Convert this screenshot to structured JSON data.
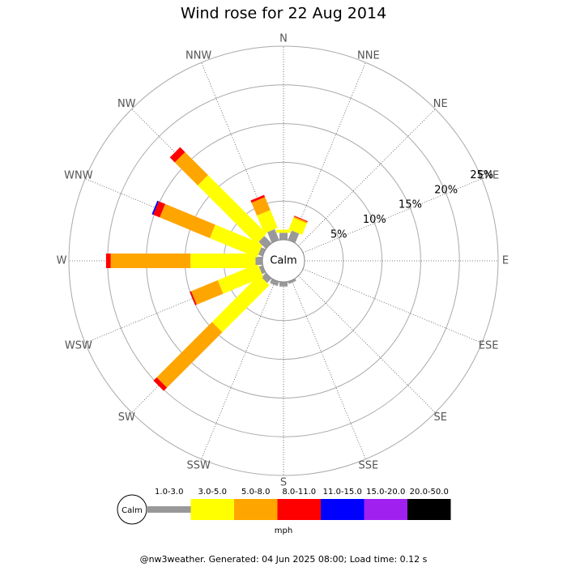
{
  "chart_data": {
    "type": "windrose",
    "title": "Wind rose for 22 Aug 2014",
    "categories": [
      "N",
      "NNE",
      "NE",
      "ENE",
      "E",
      "ESE",
      "SE",
      "SSE",
      "S",
      "SSW",
      "SW",
      "WSW",
      "W",
      "WNW",
      "NW",
      "NNW"
    ],
    "calm_label": "Calm",
    "rlim": [
      0,
      25
    ],
    "rticks": [
      {
        "value": 5,
        "label": "5%"
      },
      {
        "value": 10,
        "label": "10%"
      },
      {
        "value": 15,
        "label": "15%"
      },
      {
        "value": 20,
        "label": "20%"
      },
      {
        "value": 25,
        "label": "25%"
      }
    ],
    "series": [
      {
        "name": "1.0-3.0",
        "color": "#999999",
        "values": [
          0.9,
          1.3,
          0,
          0,
          0,
          0,
          0,
          0.3,
          0.6,
          0.6,
          0.8,
          0.5,
          0.9,
          0.6,
          1.3,
          1.5
        ]
      },
      {
        "name": "3.0-5.0",
        "color": "#ffff00",
        "values": [
          0.4,
          1.6,
          0,
          0,
          0,
          0,
          0,
          0,
          0,
          0,
          8.6,
          5.6,
          8.4,
          6.6,
          10.7,
          2.5
        ]
      },
      {
        "name": "5.0-8.0",
        "color": "#ffa500",
        "values": [
          0,
          0.2,
          0,
          0,
          0,
          0,
          0,
          0,
          0,
          0,
          10.1,
          3.7,
          10.3,
          7.0,
          4.2,
          1.8
        ]
      },
      {
        "name": "8.0-11.0",
        "color": "#ff0000",
        "values": [
          0,
          0.1,
          0,
          0,
          0,
          0,
          0,
          0,
          0,
          0,
          0.6,
          0.2,
          0.6,
          0.9,
          0.9,
          0.3
        ]
      },
      {
        "name": "11.0-15.0",
        "color": "#0000ff",
        "values": [
          0,
          0,
          0,
          0,
          0,
          0,
          0,
          0,
          0,
          0,
          0,
          0,
          0,
          0.2,
          0,
          0
        ]
      },
      {
        "name": "15.0-20.0",
        "color": "#a020f0",
        "values": [
          0,
          0,
          0,
          0,
          0,
          0,
          0,
          0,
          0,
          0,
          0,
          0,
          0,
          0,
          0,
          0
        ]
      },
      {
        "name": "20.0-50.0",
        "color": "#000000",
        "values": [
          0,
          0,
          0,
          0,
          0,
          0,
          0,
          0,
          0,
          0,
          0,
          0,
          0,
          0,
          0,
          0
        ]
      }
    ],
    "legend_unit": "mph",
    "footer": "@nw3weather. Generated: 04 Jun 2025 08:00; Load time: 0.12 s"
  }
}
